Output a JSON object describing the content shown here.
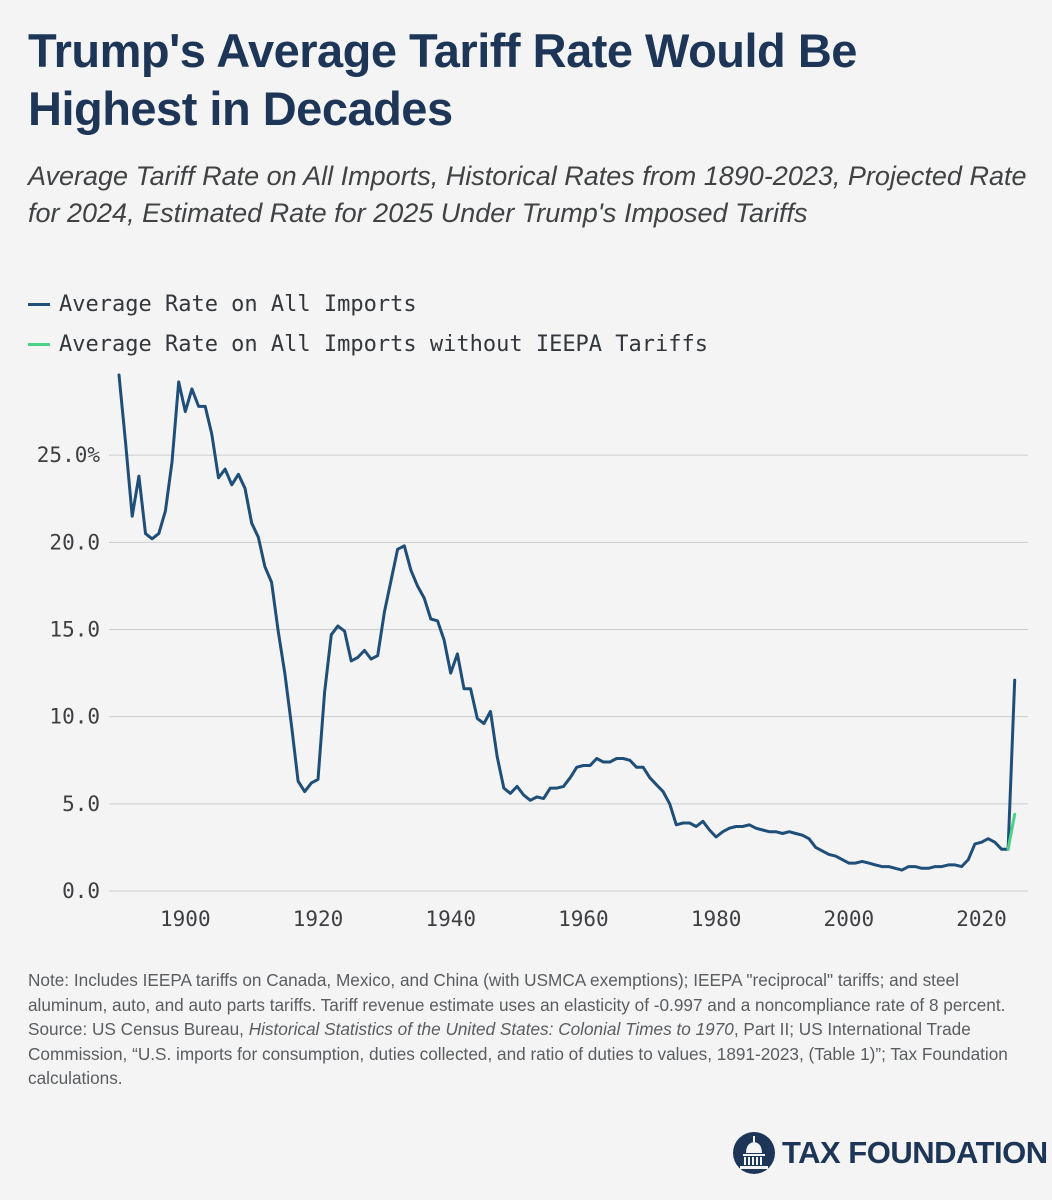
{
  "header": {
    "title": "Trump's Average Tariff Rate Would Be Highest in Decades",
    "subtitle": "Average Tariff Rate on All Imports, Historical Rates from 1890-2023, Projected Rate for 2024, Estimated Rate for 2025 Under Trump's Imposed Tariffs"
  },
  "colors": {
    "series_all": "#1f4e79",
    "series_without": "#4cd18a",
    "grid": "#cccccc"
  },
  "chart_data": {
    "type": "line",
    "title": "Trump's Average Tariff Rate Would Be Highest in Decades",
    "xlabel": "",
    "ylabel": "",
    "xlim": [
      1888.5,
      2027
    ],
    "ylim": [
      0,
      30
    ],
    "x_ticks": [
      1900,
      1920,
      1940,
      1960,
      1980,
      2000,
      2020
    ],
    "y_ticks": [
      {
        "value": 0,
        "label": "0.0"
      },
      {
        "value": 5,
        "label": "5.0"
      },
      {
        "value": 10,
        "label": "10.0"
      },
      {
        "value": 15,
        "label": "15.0"
      },
      {
        "value": 20,
        "label": "20.0"
      },
      {
        "value": 25,
        "label": "25.0%"
      }
    ],
    "legend_position": "top-left",
    "series": [
      {
        "name": "Average Rate on All Imports",
        "color": "#1f4e79",
        "x": [
          1890,
          1891,
          1892,
          1893,
          1894,
          1895,
          1896,
          1897,
          1898,
          1899,
          1900,
          1901,
          1902,
          1903,
          1904,
          1905,
          1906,
          1907,
          1908,
          1909,
          1910,
          1911,
          1912,
          1913,
          1914,
          1915,
          1916,
          1917,
          1918,
          1919,
          1920,
          1921,
          1922,
          1923,
          1924,
          1925,
          1926,
          1927,
          1928,
          1929,
          1930,
          1931,
          1932,
          1933,
          1934,
          1935,
          1936,
          1937,
          1938,
          1939,
          1940,
          1941,
          1942,
          1943,
          1944,
          1945,
          1946,
          1947,
          1948,
          1949,
          1950,
          1951,
          1952,
          1953,
          1954,
          1955,
          1956,
          1957,
          1958,
          1959,
          1960,
          1961,
          1962,
          1963,
          1964,
          1965,
          1966,
          1967,
          1968,
          1969,
          1970,
          1971,
          1972,
          1973,
          1974,
          1975,
          1976,
          1977,
          1978,
          1979,
          1980,
          1981,
          1982,
          1983,
          1984,
          1985,
          1986,
          1987,
          1988,
          1989,
          1990,
          1991,
          1992,
          1993,
          1994,
          1995,
          1996,
          1997,
          1998,
          1999,
          2000,
          2001,
          2002,
          2003,
          2004,
          2005,
          2006,
          2007,
          2008,
          2009,
          2010,
          2011,
          2012,
          2013,
          2014,
          2015,
          2016,
          2017,
          2018,
          2019,
          2020,
          2021,
          2022,
          2023,
          2024,
          2025
        ],
        "values": [
          29.6,
          25.7,
          21.5,
          23.8,
          20.5,
          20.2,
          20.5,
          21.8,
          24.6,
          29.2,
          27.5,
          28.8,
          27.8,
          27.8,
          26.2,
          23.7,
          24.2,
          23.3,
          23.9,
          23.1,
          21.1,
          20.3,
          18.6,
          17.7,
          14.9,
          12.5,
          9.5,
          6.3,
          5.7,
          6.2,
          6.4,
          11.4,
          14.7,
          15.2,
          14.9,
          13.2,
          13.4,
          13.8,
          13.3,
          13.5,
          16.0,
          17.8,
          19.6,
          19.8,
          18.4,
          17.5,
          16.8,
          15.6,
          15.5,
          14.4,
          12.5,
          13.6,
          11.6,
          11.6,
          9.9,
          9.6,
          10.3,
          7.7,
          5.9,
          5.6,
          6.0,
          5.5,
          5.2,
          5.4,
          5.3,
          5.9,
          5.9,
          6.0,
          6.5,
          7.1,
          7.2,
          7.2,
          7.6,
          7.4,
          7.4,
          7.6,
          7.6,
          7.5,
          7.1,
          7.1,
          6.5,
          6.1,
          5.7,
          5.0,
          3.8,
          3.9,
          3.9,
          3.7,
          4.0,
          3.5,
          3.1,
          3.4,
          3.6,
          3.7,
          3.7,
          3.8,
          3.6,
          3.5,
          3.4,
          3.4,
          3.3,
          3.4,
          3.3,
          3.2,
          3.0,
          2.5,
          2.3,
          2.1,
          2.0,
          1.8,
          1.6,
          1.6,
          1.7,
          1.6,
          1.5,
          1.4,
          1.4,
          1.3,
          1.2,
          1.4,
          1.4,
          1.3,
          1.3,
          1.4,
          1.4,
          1.5,
          1.5,
          1.4,
          1.8,
          2.7,
          2.8,
          3.0,
          2.8,
          2.4,
          2.4,
          12.1
        ]
      },
      {
        "name": "Average Rate on All Imports without IEEPA Tariffs",
        "color": "#4cd18a",
        "x": [
          2024,
          2025
        ],
        "values": [
          2.4,
          4.4
        ]
      }
    ]
  },
  "footer": {
    "note": "Note: Includes IEEPA tariffs on Canada, Mexico, and China (with USMCA exemptions); IEEPA \"reciprocal\" tariffs; and steel aluminum, auto, and auto parts tariffs. Tariff revenue estimate uses an elasticity of -0.997 and a noncompliance rate of 8 percent.",
    "source_prefix": "Source: US Census Bureau, ",
    "source_title": "Historical Statistics of the United States: Colonial Times to 1970",
    "source_rest": ", Part II; US International Trade Commission, “U.S. imports for consumption, duties collected, and ratio of duties to values, 1891-2023, (Table 1)”; Tax Foundation calculations.",
    "logo_text": "TAX FOUNDATION",
    "logo_icon": "capitol-dome-icon"
  }
}
